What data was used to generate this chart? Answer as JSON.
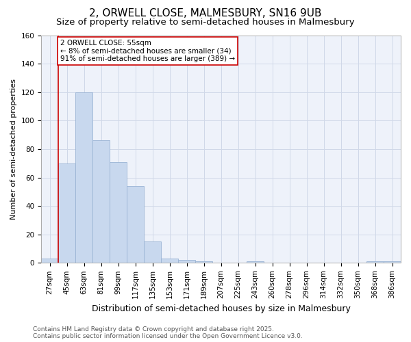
{
  "title": "2, ORWELL CLOSE, MALMESBURY, SN16 9UB",
  "subtitle": "Size of property relative to semi-detached houses in Malmesbury",
  "xlabel": "Distribution of semi-detached houses by size in Malmesbury",
  "ylabel": "Number of semi-detached properties",
  "bin_labels": [
    "27sqm",
    "45sqm",
    "63sqm",
    "81sqm",
    "99sqm",
    "117sqm",
    "135sqm",
    "153sqm",
    "171sqm",
    "189sqm",
    "207sqm",
    "225sqm",
    "243sqm",
    "260sqm",
    "278sqm",
    "296sqm",
    "314sqm",
    "332sqm",
    "350sqm",
    "368sqm",
    "386sqm"
  ],
  "bar_values": [
    3,
    70,
    120,
    86,
    71,
    54,
    15,
    3,
    2,
    1,
    0,
    0,
    1,
    0,
    0,
    0,
    0,
    0,
    0,
    1,
    1
  ],
  "bar_color": "#c8d8ee",
  "bar_edge_color": "#9ab4d4",
  "vline_color": "#cc0000",
  "annotation_text": "2 ORWELL CLOSE: 55sqm\n← 8% of semi-detached houses are smaller (34)\n91% of semi-detached houses are larger (389) →",
  "annotation_box_color": "#cc0000",
  "ylim": [
    0,
    160
  ],
  "yticks": [
    0,
    20,
    40,
    60,
    80,
    100,
    120,
    140,
    160
  ],
  "grid_color": "#d0d8e8",
  "bg_color": "#eef2fa",
  "footer": "Contains HM Land Registry data © Crown copyright and database right 2025.\nContains public sector information licensed under the Open Government Licence v3.0.",
  "title_fontsize": 11,
  "subtitle_fontsize": 9.5,
  "xlabel_fontsize": 9,
  "ylabel_fontsize": 8,
  "tick_fontsize": 7.5,
  "ann_fontsize": 7.5,
  "footer_fontsize": 6.5
}
